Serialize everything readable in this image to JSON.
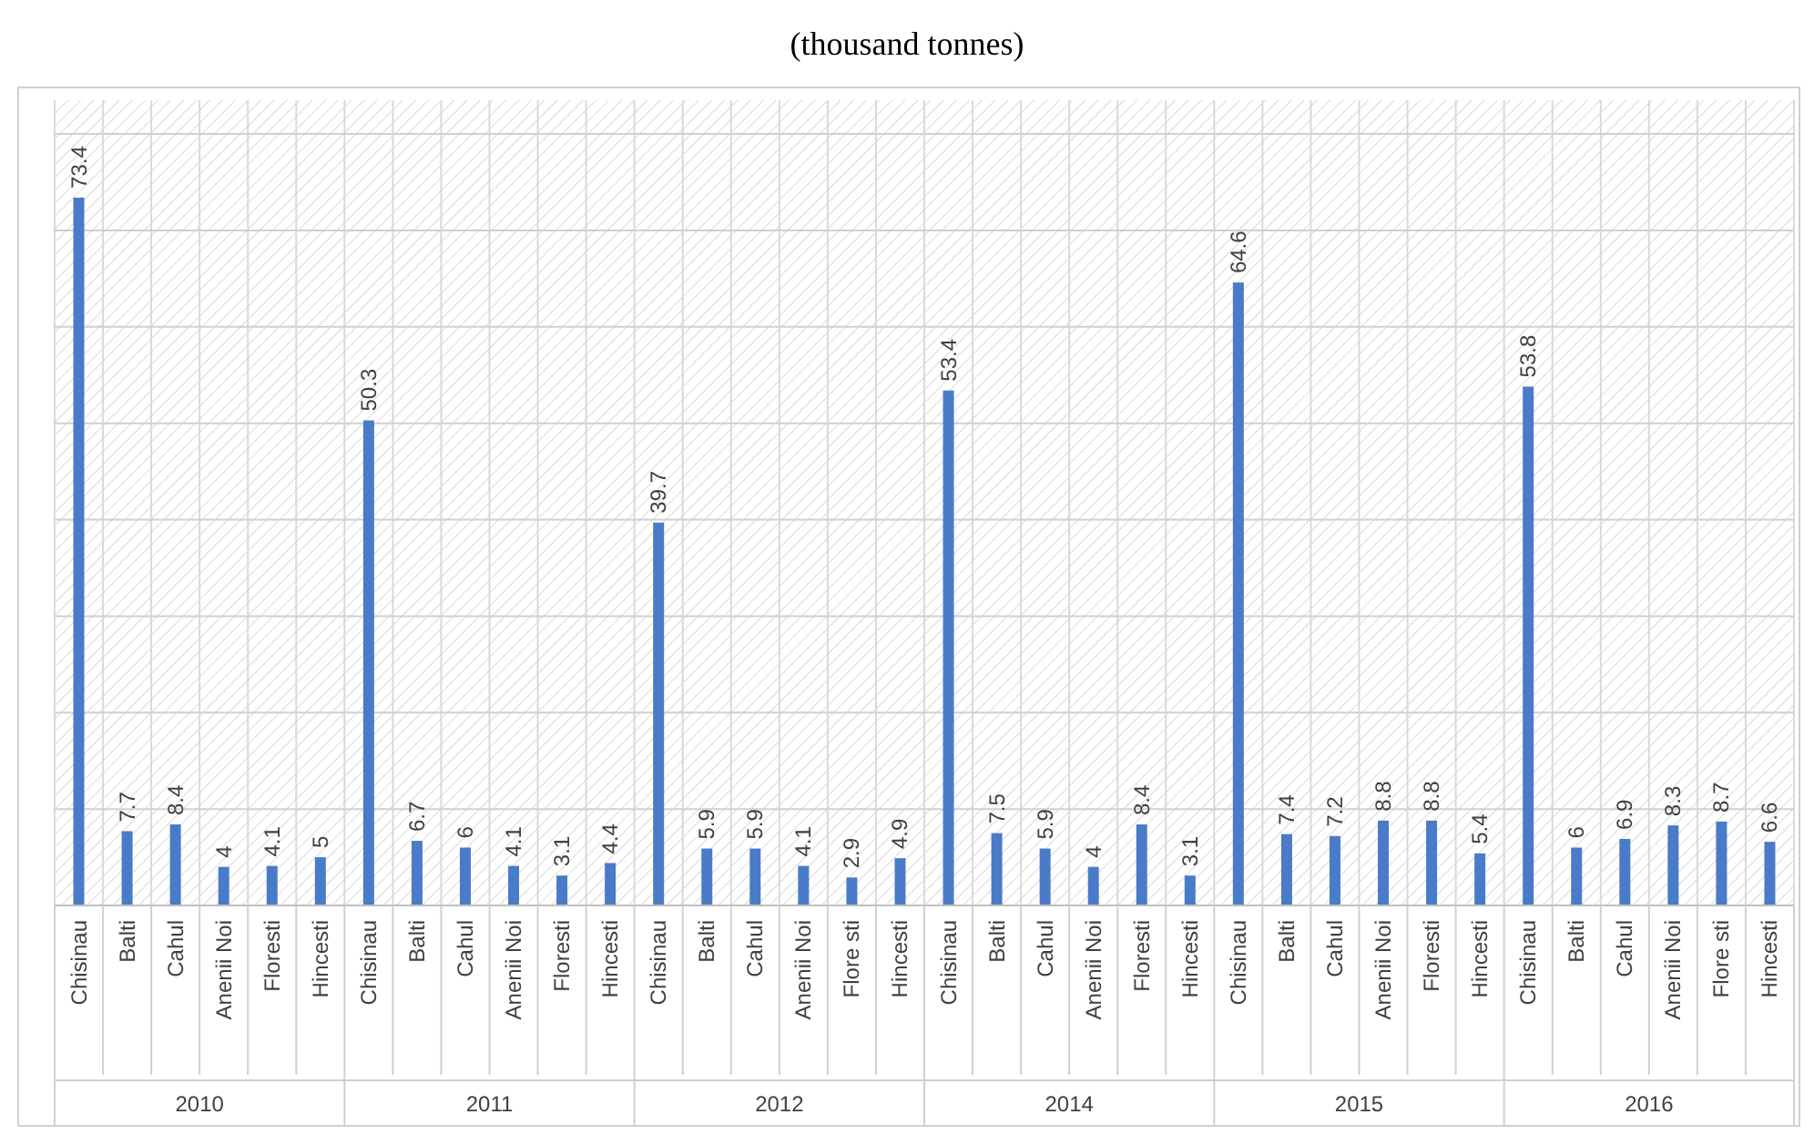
{
  "chart_data": {
    "type": "bar",
    "title": "(thousand tonnes)",
    "categories": [
      "Chisinau",
      "Balti",
      "Cahul",
      "Anenii Noi",
      "Floresti",
      "Hincesti",
      "Chisinau",
      "Balti",
      "Cahul",
      "Anenii Noi",
      "Floresti",
      "Hincesti",
      "Chisinau",
      "Balti",
      "Cahul",
      "Anenii Noi",
      "Flore sti",
      "Hincesti",
      "Chisinau",
      "Balti",
      "Cahul",
      "Anenii Noi",
      "Floresti",
      "Hincesti",
      "Chisinau",
      "Balti",
      "Cahul",
      "Anenii Noi",
      "Floresti",
      "Hincesti",
      "Chisinau",
      "Balti",
      "Cahul",
      "Anenii Noi",
      "Flore sti",
      "Hincesti"
    ],
    "values": [
      73.4,
      7.7,
      8.4,
      4,
      4.1,
      5,
      50.3,
      6.7,
      6,
      4.1,
      3.1,
      4.4,
      39.7,
      5.9,
      5.9,
      4.1,
      2.9,
      4.9,
      53.4,
      7.5,
      5.9,
      4,
      8.4,
      3.1,
      64.6,
      7.4,
      7.2,
      8.8,
      8.8,
      5.4,
      53.8,
      6,
      6.9,
      8.3,
      8.7,
      6.6
    ],
    "color": "#4a7bc8",
    "annotations": [
      "2010",
      "2011",
      "2012",
      "2014",
      "2015",
      "2016"
    ],
    "ylim": [
      0,
      83.5
    ],
    "yticks": [
      {
        "value": 0,
        "label": null
      },
      {
        "value": 10,
        "label": null
      },
      {
        "value": 20,
        "label": null
      },
      {
        "value": 30,
        "label": null
      },
      {
        "value": 40,
        "label": null
      },
      {
        "value": 50,
        "label": null
      },
      {
        "value": 60,
        "label": null
      },
      {
        "value": 70,
        "label": null
      },
      {
        "value": 80,
        "label": null
      }
    ],
    "tick_labels": "x",
    "grid": "y",
    "data_labels": true
  }
}
